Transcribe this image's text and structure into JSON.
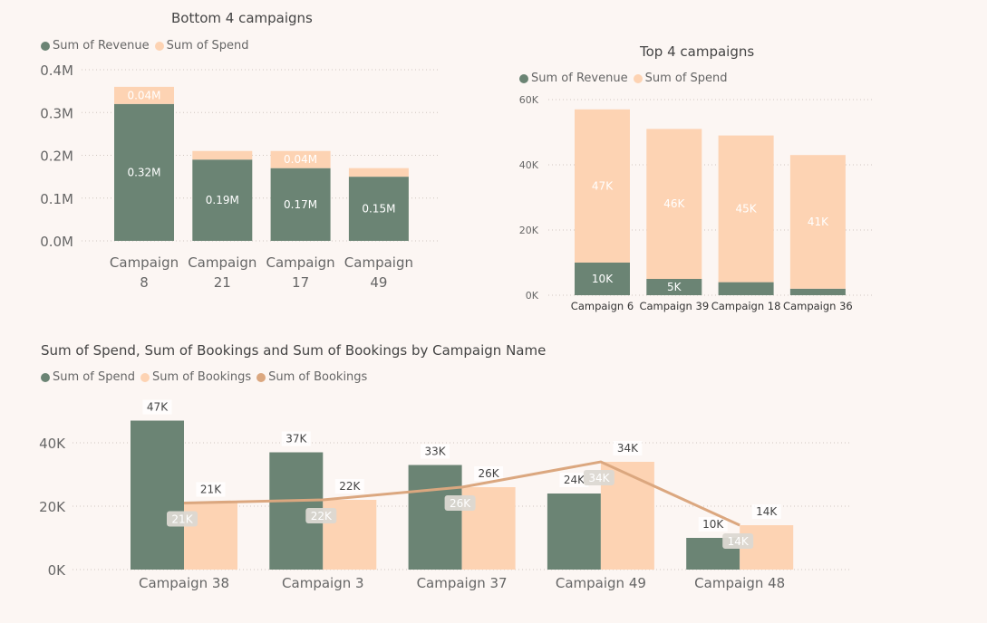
{
  "colors": {
    "revenue": "#6b8474",
    "spend": "#fdd3b3",
    "line": "#dba77f",
    "grid": "#cfc6c0",
    "axis_text": "#666666",
    "label_light": "#ffffff",
    "label_dark": "#444444"
  },
  "chart_data": [
    {
      "type": "bar",
      "stacked": true,
      "title": "Bottom 4 campaigns",
      "categories": [
        "Campaign 8",
        "Campaign 21",
        "Campaign 17",
        "Campaign 49"
      ],
      "series": [
        {
          "name": "Sum of Revenue",
          "values": [
            0.32,
            0.19,
            0.17,
            0.15
          ],
          "labels": [
            "0.32M",
            "0.19M",
            "0.17M",
            "0.15M"
          ]
        },
        {
          "name": "Sum of Spend",
          "values": [
            0.04,
            0.02,
            0.04,
            0.02
          ],
          "labels": [
            "0.04M",
            "",
            "0.04M",
            ""
          ]
        }
      ],
      "yticks": [
        "0.0M",
        "0.1M",
        "0.2M",
        "0.3M",
        "0.4M"
      ],
      "ylim": [
        0,
        0.4
      ],
      "grid": true,
      "legend": "top-left"
    },
    {
      "type": "bar",
      "stacked": true,
      "title": "Top 4 campaigns",
      "categories": [
        "Campaign 6",
        "Campaign 39",
        "Campaign 18",
        "Campaign 36"
      ],
      "series": [
        {
          "name": "Sum of Revenue",
          "values": [
            10,
            5,
            4,
            2
          ],
          "labels": [
            "10K",
            "5K",
            "",
            ""
          ]
        },
        {
          "name": "Sum of Spend",
          "values": [
            47,
            46,
            45,
            41
          ],
          "labels": [
            "47K",
            "46K",
            "45K",
            "41K"
          ]
        }
      ],
      "yticks": [
        "0K",
        "20K",
        "40K",
        "60K"
      ],
      "ylim": [
        0,
        60
      ],
      "grid": true,
      "legend": "top-left"
    },
    {
      "type": "bar",
      "title": "Sum of Spend, Sum of Bookings and Sum of Bookings by Campaign Name",
      "categories": [
        "Campaign 38",
        "Campaign 3",
        "Campaign 37",
        "Campaign 49",
        "Campaign 48"
      ],
      "series": [
        {
          "name": "Sum of Spend",
          "kind": "bar",
          "values": [
            47,
            37,
            33,
            24,
            10
          ],
          "labels": [
            "47K",
            "37K",
            "33K",
            "24K",
            "10K"
          ]
        },
        {
          "name": "Sum of Bookings",
          "kind": "bar",
          "values": [
            21,
            22,
            26,
            34,
            14
          ],
          "labels": [
            "21K",
            "22K",
            "26K",
            "34K",
            "14K"
          ]
        },
        {
          "name": "Sum of Bookings",
          "kind": "line",
          "values": [
            21,
            22,
            26,
            34,
            14
          ],
          "labels": [
            "21K",
            "22K",
            "26K",
            "34K",
            "14K"
          ]
        }
      ],
      "yticks": [
        "0K",
        "20K",
        "40K"
      ],
      "ylim": [
        0,
        50
      ],
      "grid": true,
      "legend": "top-left"
    }
  ]
}
